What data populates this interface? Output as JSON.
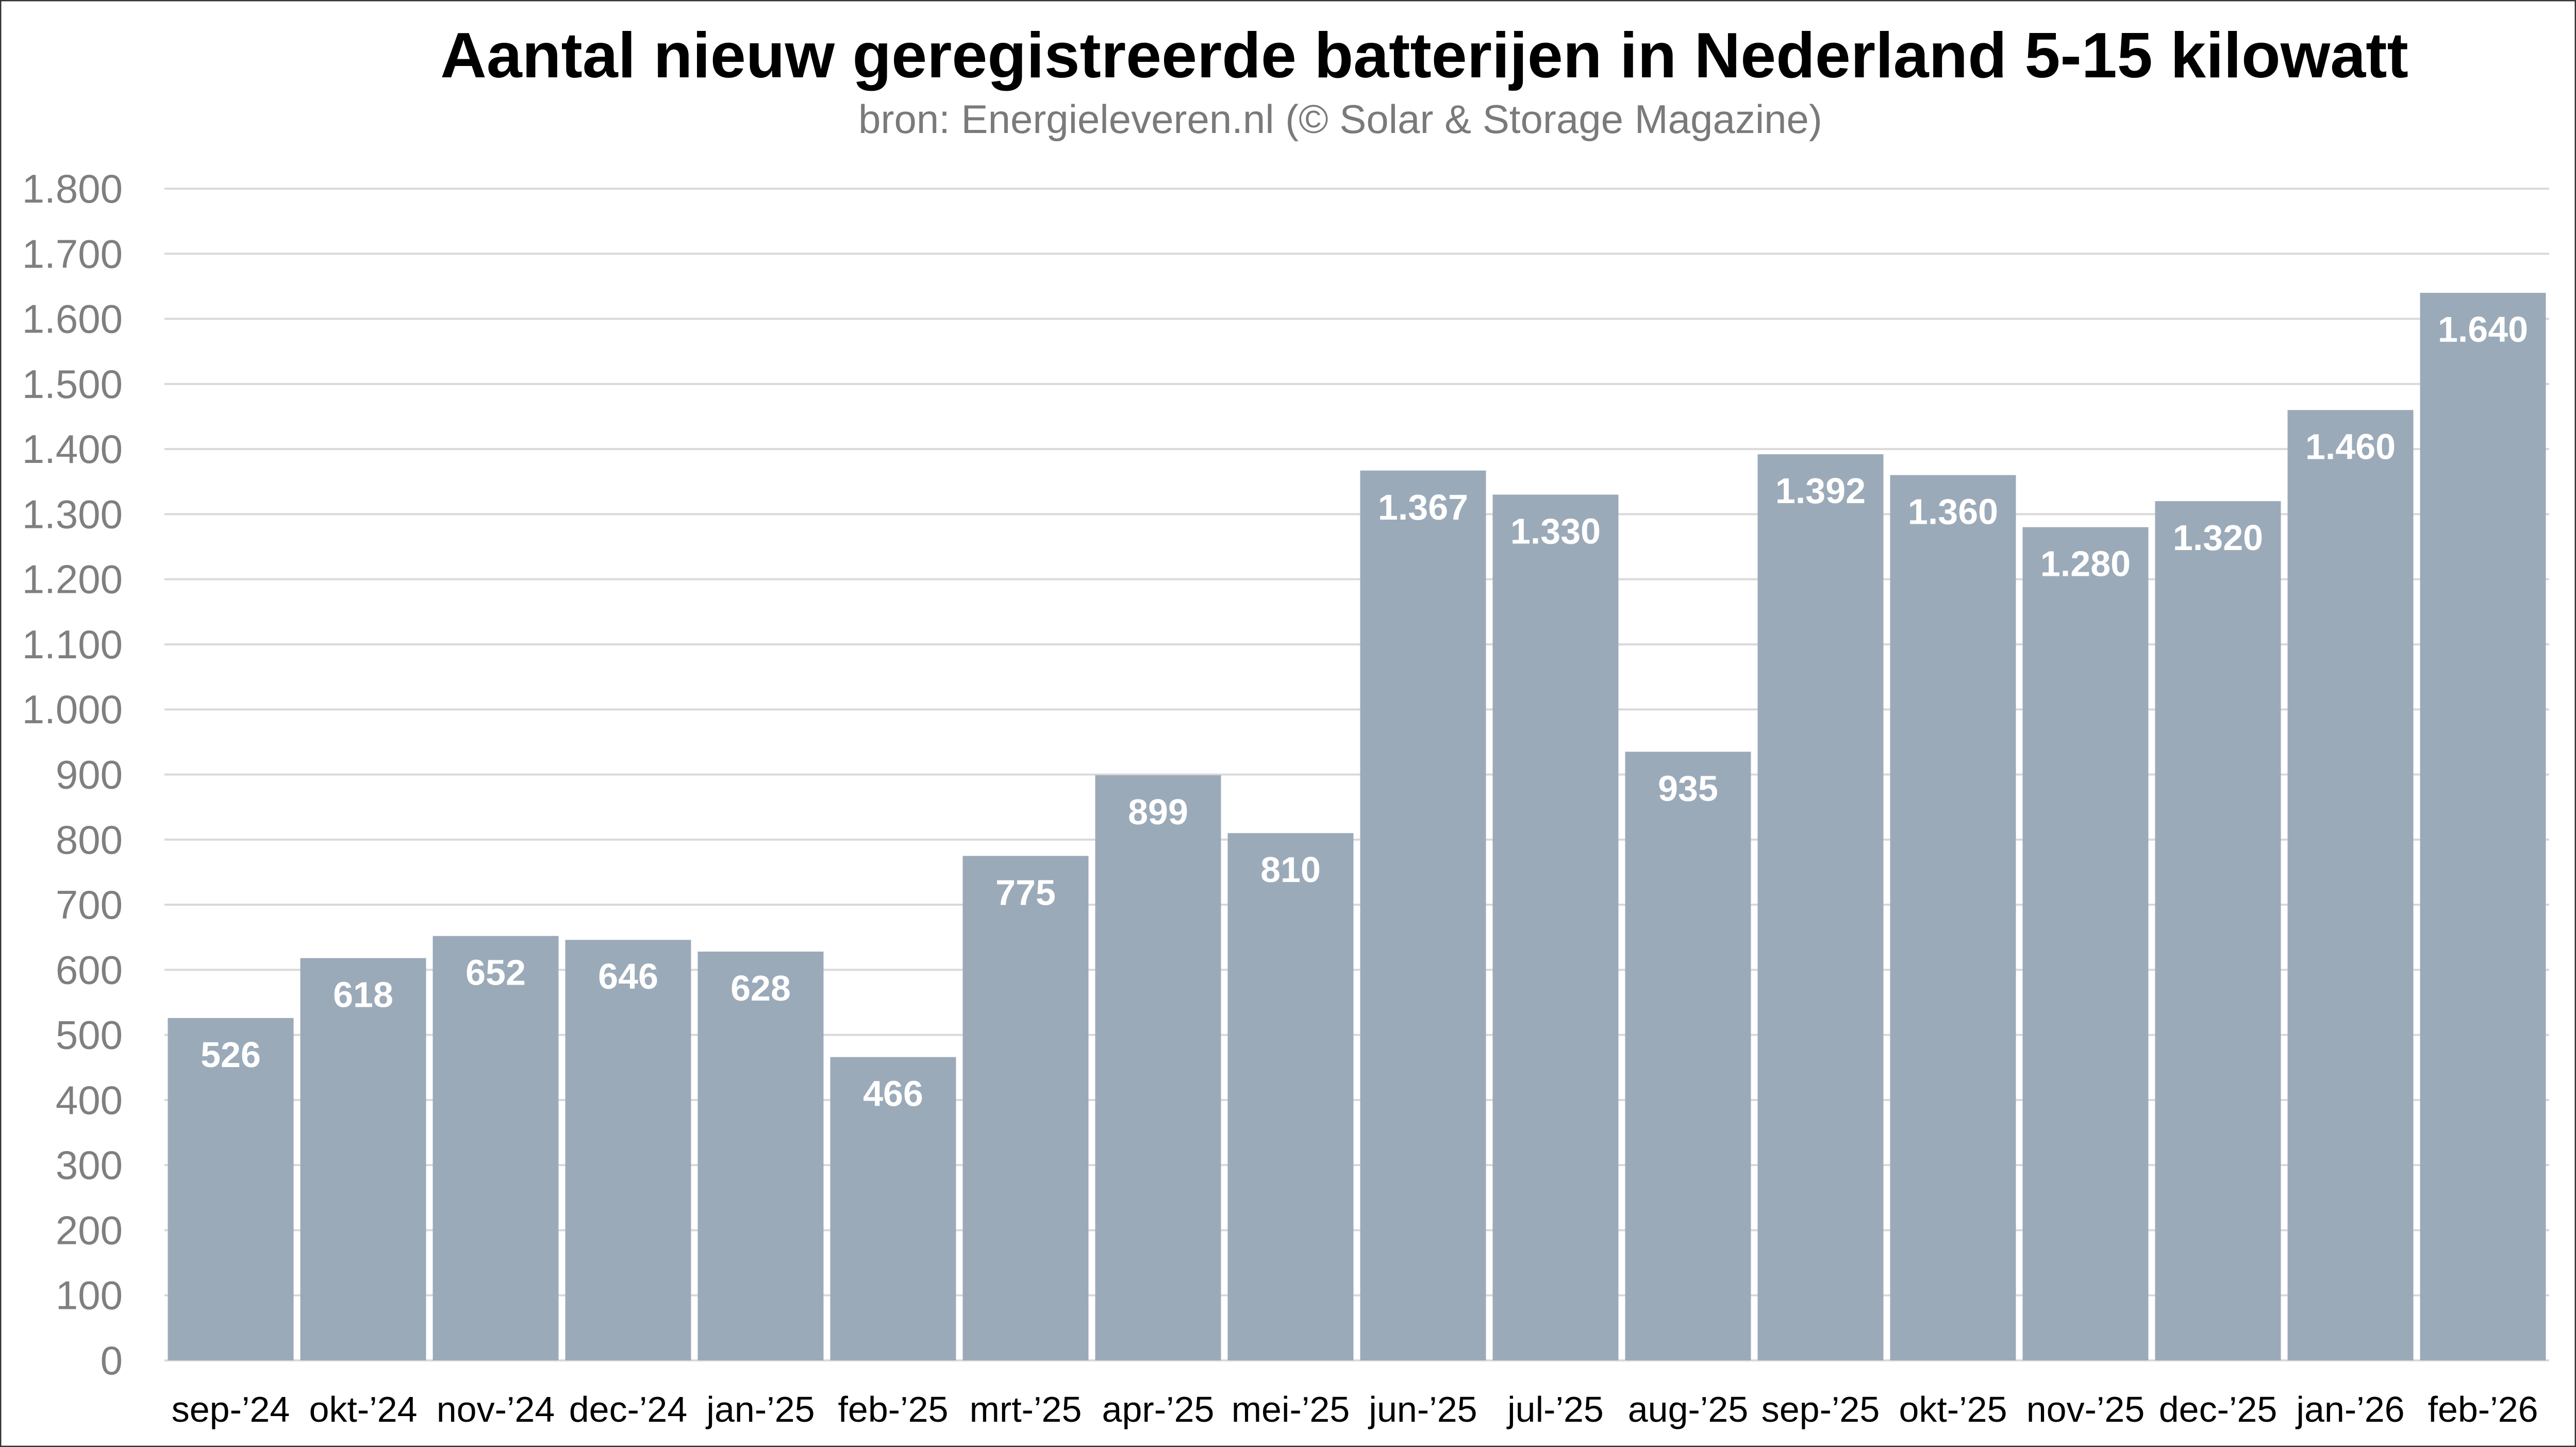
{
  "chart_data": {
    "type": "bar",
    "title": "Aantal nieuw geregistreerde batterijen in Nederland 5-15 kilowatt",
    "subtitle": "bron: Energieleveren.nl (© Solar & Storage Magazine)",
    "xlabel": "",
    "ylabel": "",
    "categories": [
      "sep-’24",
      "okt-’24",
      "nov-’24",
      "dec-’24",
      "jan-’25",
      "feb-’25",
      "mrt-’25",
      "apr-’25",
      "mei-’25",
      "jun-’25",
      "jul-’25",
      "aug-’25",
      "sep-’25",
      "okt-’25",
      "nov-’25",
      "dec-’25",
      "jan-’26",
      "feb-’26"
    ],
    "values": [
      526,
      618,
      652,
      646,
      628,
      466,
      775,
      899,
      810,
      1367,
      1330,
      935,
      1392,
      1360,
      1280,
      1320,
      1460,
      1640
    ],
    "value_labels": [
      "526",
      "618",
      "652",
      "646",
      "628",
      "466",
      "775",
      "899",
      "810",
      "1.367",
      "1.330",
      "935",
      "1.392",
      "1.360",
      "1.280",
      "1.320",
      "1.460",
      "1.640"
    ],
    "ylim": [
      0,
      1800
    ],
    "yticks": [
      0,
      100,
      200,
      300,
      400,
      500,
      600,
      700,
      800,
      900,
      1000,
      1100,
      1200,
      1300,
      1400,
      1500,
      1600,
      1700,
      1800
    ],
    "ytick_labels": [
      "0",
      "100",
      "200",
      "300",
      "400",
      "500",
      "600",
      "700",
      "800",
      "900",
      "1.000",
      "1.100",
      "1.200",
      "1.300",
      "1.400",
      "1.500",
      "1.600",
      "1.700",
      "1.800"
    ],
    "grid": true,
    "legend": "none",
    "colors": {
      "bar": "#9BAAB9",
      "grid": "#D9D9D9",
      "title": "#000000",
      "axis_text": "#7F7F7F"
    }
  }
}
